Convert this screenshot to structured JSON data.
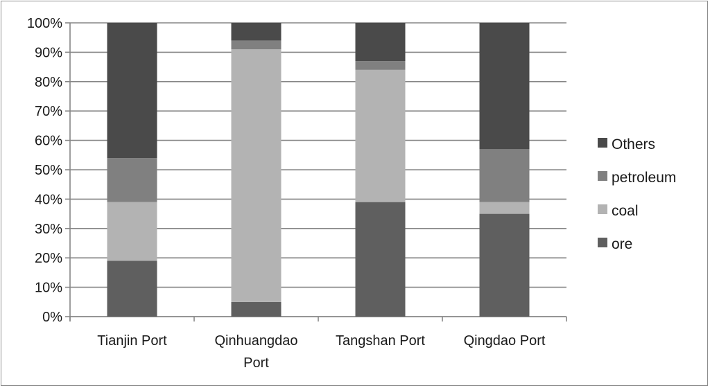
{
  "chart_data": {
    "type": "bar",
    "stacked": true,
    "percent": true,
    "title": "",
    "xlabel": "",
    "ylabel": "",
    "ylim": [
      0,
      100
    ],
    "yticks": [
      "0%",
      "10%",
      "20%",
      "30%",
      "40%",
      "50%",
      "60%",
      "70%",
      "80%",
      "90%",
      "100%"
    ],
    "categories": [
      [
        "Tianjin Port"
      ],
      [
        "Qinhuangdao",
        "Port"
      ],
      [
        "Tangshan Port"
      ],
      [
        "Qingdao Port"
      ]
    ],
    "series": [
      {
        "name": "ore",
        "color": "#5f5f5f",
        "values": [
          19,
          5,
          39,
          35
        ]
      },
      {
        "name": "coal",
        "color": "#b3b3b3",
        "values": [
          20,
          86,
          45,
          4
        ]
      },
      {
        "name": "petroleum",
        "color": "#808080",
        "values": [
          15,
          3,
          3,
          18
        ]
      },
      {
        "name": "Others",
        "color": "#4a4a4a",
        "values": [
          46,
          6,
          13,
          43
        ]
      }
    ],
    "legend_order": [
      "Others",
      "petroleum",
      "coal",
      "ore"
    ],
    "legend_position": "right",
    "grid": true
  }
}
